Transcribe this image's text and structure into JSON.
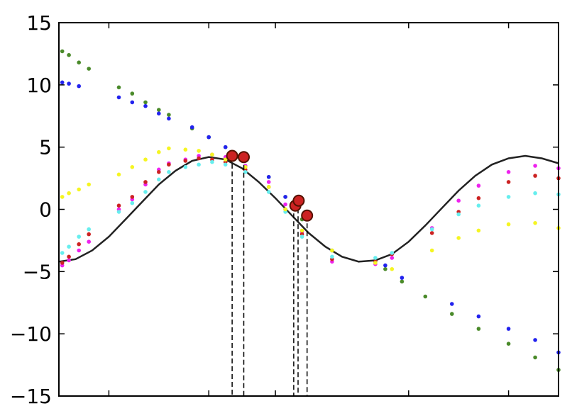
{
  "chart_data": {
    "type": "scatter",
    "title": "",
    "xlabel": "",
    "ylabel": "",
    "xlim": [
      0,
      15
    ],
    "ylim": [
      -15,
      15
    ],
    "x_ticks": [
      0,
      1.5,
      4.5,
      6.5,
      10.5,
      13.5,
      15
    ],
    "y_ticks": [
      -15,
      -10,
      -5,
      0,
      5,
      10,
      15
    ],
    "y_tick_labels": [
      "−15",
      "−10",
      "−5",
      "0",
      "5",
      "10",
      "15"
    ],
    "grid": false,
    "legend": "none",
    "curve": {
      "color": "#222222",
      "points": [
        [
          0.0,
          -4.2
        ],
        [
          0.5,
          -4.0
        ],
        [
          1.0,
          -3.3
        ],
        [
          1.5,
          -2.2
        ],
        [
          2.0,
          -0.8
        ],
        [
          2.5,
          0.6
        ],
        [
          3.0,
          2.0
        ],
        [
          3.5,
          3.1
        ],
        [
          4.0,
          3.9
        ],
        [
          4.5,
          4.2
        ],
        [
          5.0,
          4.0
        ],
        [
          5.5,
          3.3
        ],
        [
          6.0,
          2.2
        ],
        [
          6.5,
          0.9
        ],
        [
          7.0,
          -0.5
        ],
        [
          7.5,
          -1.9
        ],
        [
          8.0,
          -3.0
        ],
        [
          8.5,
          -3.8
        ],
        [
          9.0,
          -4.2
        ],
        [
          9.5,
          -4.1
        ],
        [
          10.0,
          -3.6
        ],
        [
          10.5,
          -2.6
        ],
        [
          11.0,
          -1.3
        ],
        [
          11.5,
          0.1
        ],
        [
          12.0,
          1.5
        ],
        [
          12.5,
          2.7
        ],
        [
          13.0,
          3.6
        ],
        [
          13.5,
          4.1
        ],
        [
          14.0,
          4.3
        ],
        [
          14.5,
          4.1
        ],
        [
          15.0,
          3.7
        ]
      ]
    },
    "series": [
      {
        "color": "#4a8a2a",
        "points": [
          [
            0.1,
            12.7
          ],
          [
            0.3,
            12.4
          ],
          [
            0.6,
            11.8
          ],
          [
            0.9,
            11.3
          ],
          [
            1.8,
            9.8
          ],
          [
            2.2,
            9.3
          ],
          [
            2.6,
            8.6
          ],
          [
            3.0,
            8.0
          ],
          [
            3.3,
            7.6
          ],
          [
            4.0,
            6.5
          ],
          [
            4.5,
            5.8
          ],
          [
            5.0,
            5.0
          ],
          [
            5.6,
            4.3
          ],
          [
            6.3,
            2.6
          ],
          [
            6.8,
            1.0
          ],
          [
            7.3,
            -0.8
          ],
          [
            8.2,
            -3.3
          ],
          [
            9.8,
            -4.8
          ],
          [
            10.3,
            -5.8
          ],
          [
            11.0,
            -7.0
          ],
          [
            11.8,
            -8.4
          ],
          [
            12.6,
            -9.6
          ],
          [
            13.5,
            -10.8
          ],
          [
            14.3,
            -11.9
          ],
          [
            15.0,
            -12.9
          ]
        ]
      },
      {
        "color": "#2222ee",
        "points": [
          [
            0.1,
            10.2
          ],
          [
            0.3,
            10.1
          ],
          [
            0.6,
            9.9
          ],
          [
            1.8,
            9.0
          ],
          [
            2.2,
            8.6
          ],
          [
            2.6,
            8.3
          ],
          [
            3.0,
            7.7
          ],
          [
            3.3,
            7.3
          ],
          [
            4.0,
            6.6
          ],
          [
            4.5,
            5.8
          ],
          [
            5.0,
            5.0
          ],
          [
            5.6,
            4.3
          ],
          [
            6.3,
            2.6
          ],
          [
            6.8,
            1.0
          ],
          [
            9.8,
            -4.5
          ],
          [
            10.3,
            -5.5
          ],
          [
            11.8,
            -7.6
          ],
          [
            12.6,
            -8.6
          ],
          [
            13.5,
            -9.6
          ],
          [
            14.3,
            -10.5
          ],
          [
            15.0,
            -11.5
          ]
        ]
      },
      {
        "color": "#ee22ee",
        "points": [
          [
            0.1,
            -4.5
          ],
          [
            0.3,
            -4.1
          ],
          [
            0.6,
            -3.3
          ],
          [
            0.9,
            -2.6
          ],
          [
            1.8,
            0.0
          ],
          [
            2.2,
            0.8
          ],
          [
            2.6,
            2.0
          ],
          [
            3.0,
            3.2
          ],
          [
            3.3,
            3.7
          ],
          [
            3.8,
            4.0
          ],
          [
            4.2,
            4.3
          ],
          [
            4.6,
            4.4
          ],
          [
            5.0,
            4.2
          ],
          [
            5.6,
            3.5
          ],
          [
            6.3,
            2.2
          ],
          [
            6.8,
            0.4
          ],
          [
            7.3,
            -1.8
          ],
          [
            8.2,
            -4.2
          ],
          [
            9.5,
            -4.4
          ],
          [
            10.0,
            -3.9
          ],
          [
            11.2,
            -1.5
          ],
          [
            12.0,
            0.7
          ],
          [
            12.6,
            1.9
          ],
          [
            13.5,
            3.0
          ],
          [
            14.3,
            3.5
          ],
          [
            15.0,
            3.3
          ]
        ]
      },
      {
        "color": "#cc2222",
        "points": [
          [
            0.1,
            -4.3
          ],
          [
            0.3,
            -3.8
          ],
          [
            0.6,
            -2.8
          ],
          [
            0.9,
            -2.0
          ],
          [
            1.8,
            0.3
          ],
          [
            2.2,
            1.0
          ],
          [
            2.6,
            2.2
          ],
          [
            3.0,
            3.0
          ],
          [
            3.3,
            3.6
          ],
          [
            3.8,
            3.9
          ],
          [
            4.2,
            4.1
          ],
          [
            4.6,
            4.0
          ],
          [
            5.0,
            3.8
          ],
          [
            5.6,
            3.2
          ],
          [
            6.3,
            1.8
          ],
          [
            6.8,
            0.0
          ],
          [
            7.3,
            -2.0
          ],
          [
            8.2,
            -4.0
          ],
          [
            9.5,
            -4.2
          ],
          [
            10.0,
            -3.6
          ],
          [
            11.2,
            -1.9
          ],
          [
            12.0,
            -0.2
          ],
          [
            12.6,
            0.9
          ],
          [
            13.5,
            2.2
          ],
          [
            14.3,
            2.7
          ],
          [
            15.0,
            2.5
          ]
        ]
      },
      {
        "color": "#66eeee",
        "points": [
          [
            0.1,
            -3.5
          ],
          [
            0.3,
            -3.0
          ],
          [
            0.6,
            -2.2
          ],
          [
            0.9,
            -1.6
          ],
          [
            1.8,
            -0.2
          ],
          [
            2.2,
            0.5
          ],
          [
            2.6,
            1.4
          ],
          [
            3.0,
            2.4
          ],
          [
            3.3,
            3.0
          ],
          [
            3.8,
            3.4
          ],
          [
            4.2,
            3.6
          ],
          [
            4.6,
            3.8
          ],
          [
            5.0,
            3.6
          ],
          [
            5.6,
            3.0
          ],
          [
            6.3,
            1.4
          ],
          [
            6.8,
            -0.2
          ],
          [
            7.3,
            -2.2
          ],
          [
            8.2,
            -3.8
          ],
          [
            9.5,
            -3.9
          ],
          [
            10.0,
            -3.5
          ],
          [
            11.2,
            -1.6
          ],
          [
            12.0,
            -0.4
          ],
          [
            12.6,
            0.3
          ],
          [
            13.5,
            1.0
          ],
          [
            14.3,
            1.3
          ],
          [
            15.0,
            1.2
          ]
        ]
      },
      {
        "color": "#f5f522",
        "points": [
          [
            0.1,
            1.0
          ],
          [
            0.3,
            1.3
          ],
          [
            0.6,
            1.6
          ],
          [
            0.9,
            2.0
          ],
          [
            1.8,
            2.8
          ],
          [
            2.2,
            3.4
          ],
          [
            2.6,
            4.0
          ],
          [
            3.0,
            4.6
          ],
          [
            3.3,
            4.9
          ],
          [
            3.8,
            4.8
          ],
          [
            4.2,
            4.7
          ],
          [
            4.6,
            4.4
          ],
          [
            5.0,
            4.0
          ],
          [
            5.6,
            3.4
          ],
          [
            6.3,
            1.8
          ],
          [
            6.8,
            0.0
          ],
          [
            7.3,
            -1.7
          ],
          [
            8.2,
            -3.3
          ],
          [
            9.5,
            -4.3
          ],
          [
            10.0,
            -4.8
          ],
          [
            11.2,
            -3.3
          ],
          [
            12.0,
            -2.3
          ],
          [
            12.6,
            -1.7
          ],
          [
            13.5,
            -1.2
          ],
          [
            14.3,
            -1.1
          ],
          [
            15.0,
            -1.5
          ]
        ]
      },
      {
        "color": "#cc2222",
        "stroke": "#551100",
        "size": "large",
        "points": [
          [
            5.2,
            4.3
          ],
          [
            5.55,
            4.2
          ],
          [
            7.1,
            0.3
          ],
          [
            7.2,
            0.7
          ],
          [
            7.45,
            -0.5
          ]
        ]
      }
    ],
    "vlines": [
      5.2,
      5.55,
      7.05,
      7.18,
      7.45
    ]
  }
}
